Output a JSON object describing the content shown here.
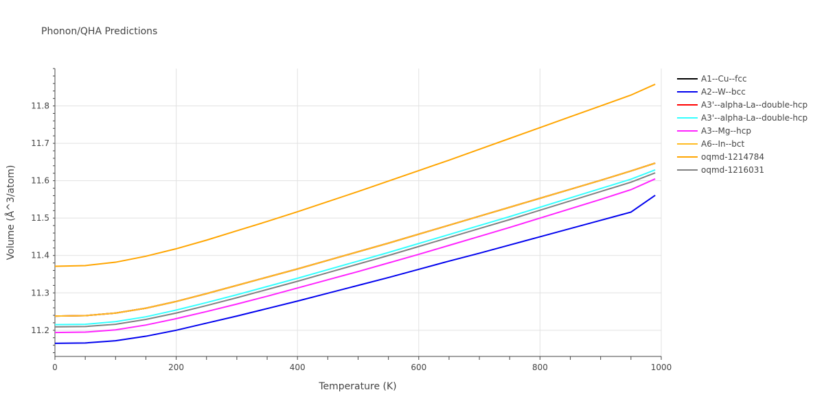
{
  "chart_data": {
    "type": "line",
    "title": "Phonon/QHA Predictions",
    "xlabel": "Temperature (K)",
    "ylabel": "Volume (Å^3/atom)",
    "xlim": [
      0,
      1000
    ],
    "ylim": [
      11.13,
      11.9
    ],
    "xticks": [
      0,
      200,
      400,
      600,
      800,
      1000
    ],
    "yticks": [
      11.2,
      11.3,
      11.4,
      11.5,
      11.6,
      11.7,
      11.8
    ],
    "grid": true,
    "legend_position": "top-right",
    "x": [
      0,
      50,
      100,
      150,
      200,
      250,
      300,
      350,
      400,
      450,
      500,
      550,
      600,
      650,
      700,
      750,
      800,
      850,
      900,
      950,
      990
    ],
    "series": [
      {
        "name": "A1--Cu--fcc",
        "color": "#000000",
        "values": [
          11.238,
          11.239,
          11.246,
          11.259,
          11.277,
          11.298,
          11.32,
          11.342,
          11.364,
          11.387,
          11.41,
          11.433,
          11.457,
          11.481,
          11.505,
          11.529,
          11.553,
          11.577,
          11.601,
          11.626,
          11.647
        ]
      },
      {
        "name": "A2--W--bcc",
        "color": "#0000ee",
        "values": [
          11.165,
          11.166,
          11.172,
          11.184,
          11.2,
          11.219,
          11.238,
          11.258,
          11.278,
          11.299,
          11.32,
          11.341,
          11.363,
          11.385,
          11.406,
          11.428,
          11.45,
          11.472,
          11.494,
          11.516,
          11.561
        ]
      },
      {
        "name": "A3'--alpha-La--double-hcp",
        "color": "#ff0000",
        "values": [
          11.238,
          11.239,
          11.246,
          11.259,
          11.277,
          11.298,
          11.32,
          11.342,
          11.364,
          11.387,
          11.41,
          11.433,
          11.457,
          11.481,
          11.505,
          11.529,
          11.553,
          11.577,
          11.601,
          11.626,
          11.647
        ]
      },
      {
        "name": "A3'--alpha-La--double-hcp",
        "color": "#33ffff",
        "values": [
          11.215,
          11.216,
          11.223,
          11.236,
          11.254,
          11.274,
          11.295,
          11.317,
          11.339,
          11.362,
          11.385,
          11.408,
          11.432,
          11.456,
          11.48,
          11.504,
          11.529,
          11.554,
          11.579,
          11.604,
          11.629
        ]
      },
      {
        "name": "A3--Mg--hcp",
        "color": "#ff22ff",
        "values": [
          11.194,
          11.195,
          11.201,
          11.214,
          11.231,
          11.25,
          11.27,
          11.291,
          11.313,
          11.335,
          11.357,
          11.38,
          11.403,
          11.427,
          11.451,
          11.475,
          11.5,
          11.525,
          11.55,
          11.576,
          11.605
        ]
      },
      {
        "name": "A6--In--bct",
        "color": "#ffbb22",
        "values": [
          11.238,
          11.239,
          11.246,
          11.259,
          11.277,
          11.298,
          11.32,
          11.342,
          11.364,
          11.387,
          11.41,
          11.433,
          11.457,
          11.481,
          11.505,
          11.529,
          11.553,
          11.577,
          11.601,
          11.626,
          11.647
        ]
      },
      {
        "name": "oqmd-1214784",
        "color": "#ffa500",
        "values": [
          11.371,
          11.373,
          11.382,
          11.398,
          11.418,
          11.441,
          11.466,
          11.491,
          11.517,
          11.544,
          11.571,
          11.599,
          11.627,
          11.655,
          11.684,
          11.713,
          11.742,
          11.771,
          11.8,
          11.829,
          11.858
        ]
      },
      {
        "name": "oqmd-1216031",
        "color": "#808080",
        "values": [
          11.209,
          11.21,
          11.216,
          11.229,
          11.246,
          11.266,
          11.287,
          11.309,
          11.331,
          11.354,
          11.377,
          11.4,
          11.424,
          11.448,
          11.472,
          11.496,
          11.521,
          11.546,
          11.571,
          11.596,
          11.621
        ]
      }
    ]
  }
}
